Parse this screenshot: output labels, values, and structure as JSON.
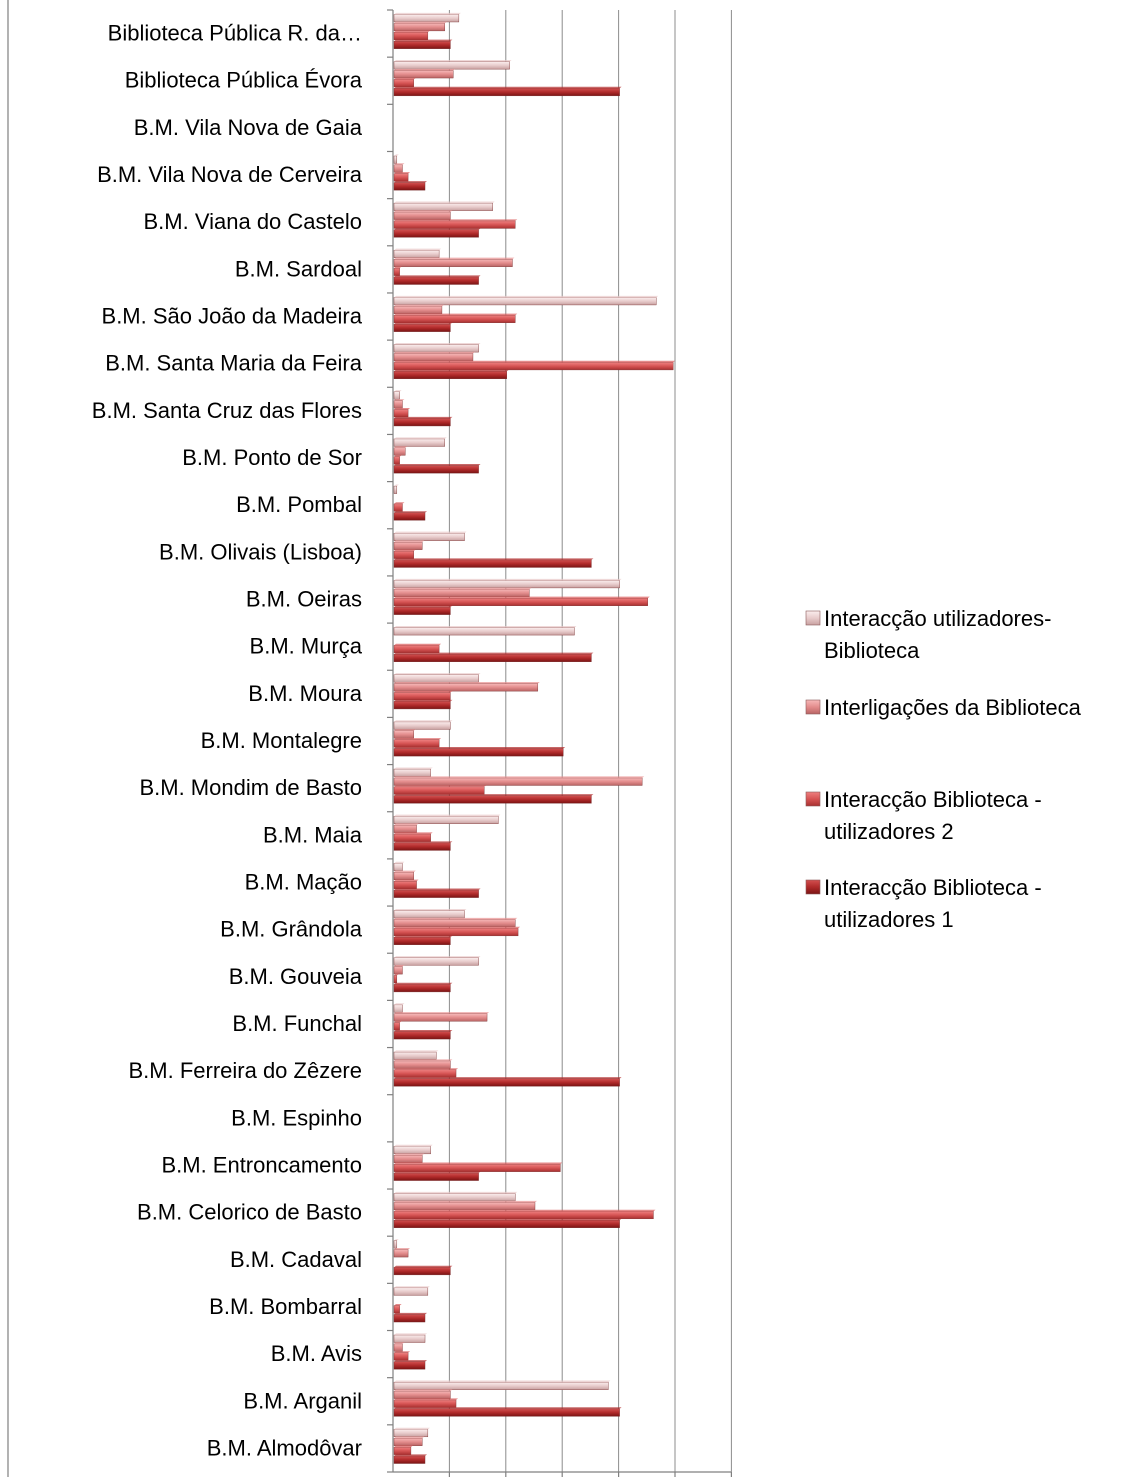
{
  "chart_data": {
    "type": "bar",
    "orientation": "horizontal",
    "categories": [
      "Biblioteca Pública R. da…",
      "Biblioteca Pública Évora",
      "B.M. Vila Nova de Gaia",
      "B.M. Vila Nova de Cerveira",
      "B.M. Viana do Castelo",
      "B.M. Sardoal",
      "B.M. São João da Madeira",
      "B.M. Santa Maria da Feira",
      "B.M. Santa Cruz das Flores",
      "B.M. Ponto de Sor",
      "B.M. Pombal",
      "B.M. Olivais (Lisboa)",
      "B.M. Oeiras",
      "B.M. Murça",
      "B.M. Moura",
      "B.M. Montalegre",
      "B.M. Mondim de Basto",
      "B.M. Maia",
      "B.M. Mação",
      "B.M. Grândola",
      "B.M. Gouveia",
      "B.M. Funchal",
      "B.M. Ferreira do Zêzere",
      "B.M. Espinho",
      "B.M. Entroncamento",
      "B.M. Celorico de Basto",
      "B.M. Cadaval",
      "B.M. Bombarral",
      "B.M.  Avis",
      "B.M. Arganil",
      "B.M. Almodôvar"
    ],
    "series": [
      {
        "name": "Interacção utilizadores-Biblioteca",
        "color": "#e8c8c8",
        "values": [
          2.3,
          4.1,
          0,
          0.1,
          3.5,
          1.6,
          9.3,
          3.0,
          0.2,
          1.8,
          0.1,
          2.5,
          8.0,
          6.4,
          3.0,
          2.0,
          1.3,
          3.7,
          0.3,
          2.5,
          3.0,
          0.3,
          1.5,
          0,
          1.3,
          4.3,
          0.1,
          1.2,
          1.1,
          7.6,
          1.2
        ]
      },
      {
        "name": "Interligações da Biblioteca",
        "color": "#e89090",
        "values": [
          1.8,
          2.1,
          0,
          0.3,
          2.0,
          4.2,
          1.7,
          2.8,
          0.3,
          0.4,
          0,
          1.0,
          4.8,
          0,
          5.1,
          0.7,
          8.8,
          0.8,
          0.7,
          4.3,
          0.3,
          3.3,
          2.0,
          0,
          1.0,
          5.0,
          0.5,
          0,
          0.3,
          2.0,
          1.0
        ]
      },
      {
        "name": "Interacção Biblioteca - utilizadores 2",
        "color": "#d85858",
        "values": [
          1.2,
          0.7,
          0,
          0.5,
          4.3,
          0.2,
          4.3,
          9.9,
          0.5,
          0.2,
          0.3,
          0.7,
          9.0,
          1.6,
          2.0,
          1.6,
          3.2,
          1.3,
          0.8,
          4.4,
          0.1,
          0.2,
          2.2,
          0,
          5.9,
          9.2,
          0,
          0.2,
          0.5,
          2.2,
          0.6
        ]
      },
      {
        "name": "Interacção Biblioteca - utilizadores 1",
        "color": "#b02828",
        "values": [
          2.0,
          8.0,
          0,
          1.1,
          3.0,
          3.0,
          2.0,
          4.0,
          2.0,
          3.0,
          1.1,
          7.0,
          2.0,
          7.0,
          2.0,
          6.0,
          7.0,
          2.0,
          3.0,
          2.0,
          2.0,
          2.0,
          8.0,
          0,
          3.0,
          8.0,
          2.0,
          1.1,
          1.1,
          8.0,
          1.1
        ]
      }
    ],
    "xlim": [
      0,
      12
    ],
    "grid": true,
    "legend_position": "right",
    "legend": [
      {
        "label": "Interacção utilizadores-",
        "label2": "Biblioteca",
        "color": "#e8c8c8"
      },
      {
        "label": "Interligações da Biblioteca",
        "label2": "",
        "color": "#e89090"
      },
      {
        "label": "Interacção Biblioteca -",
        "label2": "utilizadores 2",
        "color": "#d85858"
      },
      {
        "label": "Interacção Biblioteca -",
        "label2": "utilizadores 1",
        "color": "#b02828"
      }
    ]
  }
}
